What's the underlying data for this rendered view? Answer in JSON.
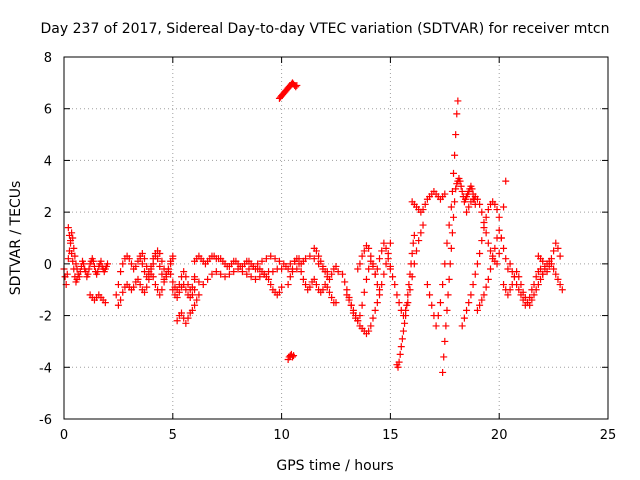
{
  "chart_data": {
    "type": "scatter",
    "title": "Day 237 of 2017, Sidereal Day-to-day VTEC variation (SDTVAR) for receiver mtcn",
    "xlabel": "GPS time / hours",
    "ylabel": "SDTVAR / TECUs",
    "xlim": [
      0,
      25
    ],
    "ylim": [
      -6,
      8
    ],
    "xticks": [
      "0",
      "5",
      "10",
      "15",
      "20",
      "25"
    ],
    "yticks": [
      "-6",
      "-4",
      "-2",
      "0",
      "2",
      "4",
      "6",
      "8"
    ],
    "grid": true,
    "marker": "plus",
    "color": "#ff0000",
    "series": [
      {
        "name": "SDTVAR",
        "x": [
          0.0,
          0.05,
          0.1,
          0.15,
          0.2,
          0.25,
          0.3,
          0.35,
          0.4,
          0.45,
          0.5,
          0.55,
          0.6,
          0.65,
          0.7,
          0.75,
          0.8,
          0.85,
          0.9,
          0.95,
          1.0,
          1.05,
          1.1,
          1.15,
          1.2,
          1.25,
          1.3,
          1.35,
          1.4,
          1.45,
          1.5,
          1.55,
          1.6,
          1.65,
          1.7,
          1.75,
          1.8,
          1.85,
          1.9,
          1.95,
          2.0,
          0.2,
          0.25,
          0.3,
          0.35,
          0.4,
          0.45,
          0.5,
          0.55,
          0.6,
          1.2,
          1.3,
          1.4,
          1.5,
          1.6,
          1.7,
          1.8,
          1.9,
          2.4,
          2.5,
          2.6,
          2.7,
          2.8,
          2.9,
          3.0,
          3.1,
          3.2,
          3.3,
          3.4,
          3.5,
          3.6,
          3.7,
          3.8,
          3.9,
          4.0,
          4.1,
          4.2,
          4.3,
          4.4,
          4.5,
          4.6,
          4.7,
          4.8,
          4.9,
          5.0,
          2.5,
          2.6,
          2.7,
          2.8,
          2.9,
          3.0,
          3.1,
          3.2,
          3.3,
          3.4,
          3.5,
          3.6,
          3.7,
          3.8,
          3.9,
          4.0,
          4.1,
          4.2,
          4.3,
          4.4,
          4.5,
          4.6,
          4.7,
          4.8,
          4.9,
          5.0,
          5.1,
          5.2,
          5.3,
          5.4,
          5.5,
          5.6,
          5.7,
          5.8,
          5.9,
          6.0,
          3.5,
          3.6,
          3.7,
          3.8,
          3.9,
          4.0,
          4.1,
          4.2,
          4.3,
          4.4,
          4.5,
          4.6,
          4.7,
          4.8,
          4.9,
          5.0,
          5.0,
          5.1,
          5.2,
          5.3,
          5.4,
          5.5,
          5.6,
          5.7,
          5.8,
          5.9,
          6.0,
          5.2,
          5.3,
          5.4,
          5.5,
          5.6,
          5.7,
          5.8,
          5.9,
          6.0,
          6.1,
          6.2,
          6.0,
          6.1,
          6.2,
          6.3,
          6.4,
          6.5,
          6.6,
          6.7,
          6.8,
          6.9,
          7.0,
          7.1,
          7.2,
          7.3,
          7.4,
          7.5,
          7.6,
          7.7,
          7.8,
          7.9,
          8.0,
          8.1,
          8.2,
          8.3,
          8.4,
          8.5,
          8.6,
          8.7,
          8.8,
          8.9,
          9.0,
          9.1,
          9.2,
          9.3,
          9.4,
          9.5,
          9.6,
          9.7,
          9.8,
          9.9,
          10.0,
          6.0,
          6.2,
          6.4,
          6.6,
          6.8,
          7.0,
          7.2,
          7.4,
          7.6,
          7.8,
          8.0,
          8.2,
          8.4,
          8.6,
          8.8,
          9.0,
          9.2,
          9.4,
          9.6,
          9.8,
          10.0,
          10.2,
          10.4,
          10.6,
          10.8,
          11.0,
          8.5,
          8.7,
          8.9,
          9.1,
          9.3,
          9.5,
          9.7,
          9.9,
          10.1,
          10.3,
          10.5,
          10.7,
          10.9,
          11.1,
          11.3,
          11.5,
          11.7,
          11.9,
          12.1,
          10.3,
          10.4,
          10.5,
          10.6,
          10.7,
          10.8,
          10.9,
          11.0,
          11.1,
          11.2,
          11.3,
          11.4,
          11.5,
          11.6,
          11.7,
          11.8,
          11.9,
          12.0,
          12.1,
          12.2,
          12.3,
          12.4,
          12.5,
          11.5,
          11.6,
          11.7,
          11.8,
          11.9,
          12.0,
          12.1,
          12.2,
          12.3,
          12.4,
          12.5,
          12.6,
          9.9,
          9.95,
          10.0,
          10.05,
          10.1,
          10.15,
          10.2,
          10.25,
          10.3,
          10.35,
          10.4,
          10.45,
          10.5,
          10.55,
          10.6,
          10.65,
          10.7,
          10.3,
          10.35,
          10.4,
          10.45,
          10.5,
          10.55,
          12.8,
          12.9,
          13.0,
          13.1,
          13.2,
          13.3,
          13.4,
          13.5,
          13.6,
          13.7,
          13.8,
          13.9,
          14.0,
          14.1,
          14.2,
          14.3,
          14.4,
          14.5,
          14.6,
          14.7,
          14.8,
          14.9,
          15.0,
          13.0,
          13.1,
          13.2,
          13.3,
          13.4,
          13.5,
          13.6,
          13.7,
          13.8,
          13.9,
          14.0,
          14.1,
          14.2,
          14.3,
          14.4,
          14.5,
          13.5,
          13.6,
          13.7,
          13.8,
          13.9,
          14.0,
          14.1,
          14.2,
          14.3,
          14.4,
          14.5,
          14.6,
          14.7,
          14.8,
          14.9,
          15.0,
          15.0,
          15.1,
          15.2,
          15.3,
          15.4,
          15.5,
          15.6,
          15.7,
          15.8,
          15.9,
          16.0,
          16.1,
          16.2,
          16.3,
          16.4,
          16.5,
          15.3,
          15.35,
          15.4,
          15.45,
          15.5,
          15.55,
          15.6,
          15.65,
          15.7,
          15.75,
          15.8,
          15.85,
          15.9,
          15.95,
          16.0,
          16.05,
          16.1,
          16.0,
          16.1,
          16.2,
          16.3,
          16.4,
          16.5,
          16.6,
          16.7,
          16.8,
          16.9,
          17.0,
          17.1,
          17.2,
          17.3,
          17.4,
          17.5,
          16.7,
          16.8,
          16.9,
          17.0,
          17.1,
          17.2,
          17.3,
          17.4,
          17.5,
          17.6,
          17.7,
          17.8,
          17.85,
          17.9,
          17.95,
          18.0,
          18.05,
          18.1,
          17.4,
          17.45,
          17.5,
          17.55,
          17.6,
          17.65,
          17.7,
          17.75,
          17.8,
          17.85,
          17.9,
          17.95,
          18.0,
          18.05,
          18.1,
          18.15,
          18.2,
          18.25,
          18.3,
          18.35,
          18.4,
          18.45,
          18.5,
          18.55,
          18.6,
          18.65,
          18.7,
          18.75,
          18.8,
          18.85,
          18.9,
          18.3,
          18.4,
          18.5,
          18.6,
          18.7,
          18.8,
          18.9,
          19.0,
          19.1,
          19.2,
          19.3,
          19.4,
          19.5,
          19.6,
          19.7,
          19.8,
          19.9,
          20.0,
          19.0,
          19.1,
          19.2,
          19.3,
          19.4,
          19.5,
          19.6,
          19.7,
          19.8,
          19.9,
          20.0,
          20.1,
          20.2,
          20.3,
          20.4,
          18.5,
          18.6,
          18.7,
          18.8,
          18.9,
          19.0,
          19.1,
          19.2,
          19.3,
          19.4,
          19.5,
          19.6,
          19.7,
          19.8,
          19.9,
          20.0,
          20.1,
          20.2,
          20.3,
          20.2,
          20.3,
          20.4,
          20.5,
          20.6,
          20.7,
          20.8,
          20.9,
          21.0,
          21.1,
          21.2,
          21.3,
          21.4,
          21.5,
          21.6,
          21.7,
          21.8,
          21.9,
          22.0,
          22.1,
          22.2,
          22.3,
          22.4,
          22.5,
          22.6,
          22.7,
          22.8,
          22.9,
          20.5,
          20.6,
          20.7,
          20.8,
          20.9,
          21.0,
          21.1,
          21.2,
          21.3,
          21.4,
          21.5,
          21.6,
          21.7,
          21.8,
          21.9,
          22.0,
          21.8,
          21.9,
          22.0,
          22.1,
          22.2,
          22.3,
          22.4,
          22.5,
          22.6,
          22.7,
          22.8
        ],
        "y": [
          -0.2,
          -0.5,
          -0.8,
          -0.4,
          0.2,
          0.5,
          0.9,
          1.2,
          1.0,
          0.6,
          0.3,
          0.0,
          -0.2,
          -0.4,
          -0.5,
          -0.3,
          -0.1,
          0.1,
          0.0,
          -0.2,
          -0.3,
          -0.5,
          -0.4,
          -0.2,
          0.0,
          0.1,
          0.2,
          0.1,
          -0.1,
          -0.3,
          -0.4,
          -0.3,
          -0.1,
          0.0,
          0.1,
          -0.1,
          -0.2,
          -0.3,
          -0.2,
          -0.1,
          0.0,
          1.4,
          1.1,
          0.8,
          0.4,
          0.1,
          -0.2,
          -0.5,
          -0.7,
          -0.6,
          -1.2,
          -1.3,
          -1.4,
          -1.3,
          -1.2,
          -1.3,
          -1.4,
          -1.5,
          -1.2,
          -0.8,
          -0.3,
          0.0,
          0.2,
          0.3,
          0.2,
          0.0,
          -0.2,
          -0.1,
          0.1,
          0.3,
          0.4,
          0.2,
          -0.1,
          -0.3,
          -0.2,
          0.0,
          0.3,
          0.5,
          0.4,
          0.1,
          -0.2,
          -0.4,
          -0.3,
          0.0,
          0.2,
          -1.6,
          -1.4,
          -1.1,
          -0.9,
          -0.8,
          -0.9,
          -1.0,
          -0.9,
          -0.7,
          -0.6,
          -0.8,
          -1.0,
          -1.1,
          -0.9,
          -0.6,
          -0.4,
          -0.5,
          -0.8,
          -1.0,
          -1.2,
          -1.0,
          -0.7,
          -0.4,
          -0.2,
          -0.4,
          -0.7,
          -0.9,
          -1.0,
          -0.8,
          -0.5,
          -0.3,
          -0.5,
          -0.8,
          -1.0,
          -0.9,
          -0.6,
          0.2,
          0.0,
          -0.3,
          -0.5,
          -0.4,
          -0.1,
          0.2,
          0.4,
          0.2,
          -0.1,
          -0.4,
          -0.6,
          -0.5,
          -0.2,
          0.1,
          0.3,
          -1.0,
          -1.2,
          -1.3,
          -1.1,
          -0.9,
          -0.8,
          -1.0,
          -1.2,
          -1.3,
          -1.2,
          -1.0,
          -2.2,
          -2.0,
          -1.9,
          -2.1,
          -2.3,
          -2.1,
          -1.9,
          -1.8,
          -1.6,
          -1.4,
          -1.2,
          0.1,
          0.2,
          0.3,
          0.2,
          0.1,
          0.0,
          0.1,
          0.2,
          0.3,
          0.3,
          0.2,
          0.2,
          0.2,
          0.1,
          0.0,
          -0.1,
          -0.1,
          0.0,
          0.1,
          0.1,
          0.0,
          -0.1,
          -0.1,
          0.0,
          0.1,
          0.1,
          0.0,
          -0.1,
          -0.2,
          -0.2,
          -0.2,
          -0.3,
          -0.4,
          -0.5,
          -0.6,
          -0.8,
          -1.0,
          -1.1,
          -1.2,
          -1.1,
          -0.9,
          -0.5,
          -0.7,
          -0.8,
          -0.6,
          -0.4,
          -0.3,
          -0.4,
          -0.5,
          -0.4,
          -0.3,
          -0.2,
          -0.3,
          -0.4,
          -0.5,
          -0.6,
          -0.5,
          -0.4,
          -0.3,
          -0.3,
          -0.2,
          -0.2,
          -0.1,
          0.0,
          0.1,
          0.2,
          0.1,
          -0.2,
          -0.1,
          0.0,
          0.1,
          0.2,
          0.3,
          0.2,
          0.1,
          0.0,
          -0.2,
          -0.3,
          -0.2,
          0.0,
          0.2,
          0.3,
          0.2,
          0.0,
          -0.2,
          -0.3,
          -0.8,
          -0.5,
          -0.2,
          0.1,
          0.2,
          0.0,
          -0.3,
          -0.6,
          -0.8,
          -1.0,
          -0.9,
          -0.7,
          -0.6,
          -0.8,
          -1.0,
          -1.1,
          -1.0,
          -0.8,
          -0.9,
          -1.1,
          -1.3,
          -1.5,
          -1.5,
          0.6,
          0.5,
          0.3,
          0.1,
          -0.1,
          -0.3,
          -0.5,
          -0.6,
          -0.4,
          -0.2,
          -0.1,
          -0.3,
          6.4,
          6.45,
          6.5,
          6.55,
          6.6,
          6.65,
          6.7,
          6.75,
          6.8,
          6.85,
          6.9,
          6.95,
          7.0,
          6.95,
          6.9,
          6.85,
          6.9,
          -3.7,
          -3.6,
          -3.55,
          -3.5,
          -3.6,
          -3.55,
          -0.4,
          -0.7,
          -1.0,
          -1.3,
          -1.6,
          -1.9,
          -2.1,
          -2.2,
          -2.0,
          -1.6,
          -1.1,
          -0.6,
          -0.2,
          0.1,
          -0.1,
          -0.4,
          -0.2,
          0.2,
          0.5,
          0.8,
          0.6,
          0.2,
          -0.1,
          -1.2,
          -1.4,
          -1.6,
          -1.8,
          -2.0,
          -2.2,
          -2.4,
          -2.5,
          -2.6,
          -2.7,
          -2.6,
          -2.4,
          -2.1,
          -1.8,
          -1.5,
          -1.2,
          -0.2,
          0.0,
          0.3,
          0.5,
          0.7,
          0.6,
          0.3,
          0.0,
          -0.4,
          -0.8,
          -1.0,
          -0.8,
          -0.4,
          0.0,
          0.4,
          0.8,
          -0.2,
          -0.5,
          -0.8,
          -1.2,
          -1.5,
          -1.8,
          -2.0,
          -1.8,
          -1.5,
          -1.0,
          -0.5,
          0.0,
          0.5,
          0.9,
          1.2,
          1.5,
          -3.9,
          -4.0,
          -3.8,
          -3.5,
          -3.2,
          -2.9,
          -2.6,
          -2.3,
          -2.0,
          -1.6,
          -1.2,
          -0.8,
          -0.4,
          0.0,
          0.4,
          0.8,
          1.1,
          2.4,
          2.3,
          2.2,
          2.1,
          2.0,
          2.1,
          2.3,
          2.5,
          2.6,
          2.7,
          2.8,
          2.7,
          2.6,
          2.5,
          2.6,
          2.7,
          -0.8,
          -1.2,
          -1.6,
          -2.0,
          -2.4,
          -2.0,
          -1.5,
          -0.8,
          0.0,
          0.8,
          1.5,
          2.2,
          2.8,
          3.5,
          4.2,
          5.0,
          5.8,
          6.3,
          -4.2,
          -3.6,
          -3.0,
          -2.4,
          -1.8,
          -1.2,
          -0.6,
          0.0,
          0.6,
          1.2,
          1.8,
          2.4,
          2.9,
          3.1,
          3.2,
          3.3,
          3.2,
          3.0,
          2.8,
          2.6,
          2.4,
          2.5,
          2.6,
          2.7,
          2.8,
          2.9,
          3.0,
          2.9,
          2.7,
          2.5,
          2.3,
          -2.4,
          -2.1,
          -1.8,
          -1.5,
          -1.2,
          -0.8,
          -0.4,
          0.0,
          0.4,
          0.9,
          1.4,
          1.8,
          2.1,
          2.3,
          2.4,
          2.3,
          2.1,
          1.8,
          -1.8,
          -1.6,
          -1.4,
          -1.2,
          -0.9,
          -0.6,
          -0.2,
          0.2,
          0.6,
          1.0,
          1.3,
          1.0,
          0.6,
          0.2,
          -0.2,
          2.0,
          2.2,
          2.4,
          2.5,
          2.6,
          2.5,
          2.3,
          2.0,
          1.6,
          1.2,
          0.8,
          0.5,
          0.3,
          0.1,
          0.0,
          0.4,
          1.0,
          2.2,
          3.2,
          -0.8,
          -1.0,
          -1.2,
          -1.0,
          -0.8,
          -0.5,
          -0.3,
          -0.5,
          -0.8,
          -1.1,
          -1.3,
          -1.5,
          -1.6,
          -1.4,
          -1.2,
          -1.0,
          -0.8,
          -0.6,
          -0.4,
          -0.2,
          0.0,
          0.1,
          0.0,
          -0.2,
          -0.4,
          -0.6,
          -0.8,
          -1.0,
          0.0,
          -0.3,
          -0.5,
          -0.8,
          -1.0,
          -1.2,
          -1.4,
          -1.6,
          -1.5,
          -1.3,
          -1.0,
          -0.8,
          -0.5,
          -0.3,
          -0.2,
          -0.4,
          0.3,
          0.2,
          0.1,
          -0.1,
          -0.3,
          -0.1,
          0.2,
          0.5,
          0.8,
          0.6,
          0.3
        ]
      }
    ]
  }
}
